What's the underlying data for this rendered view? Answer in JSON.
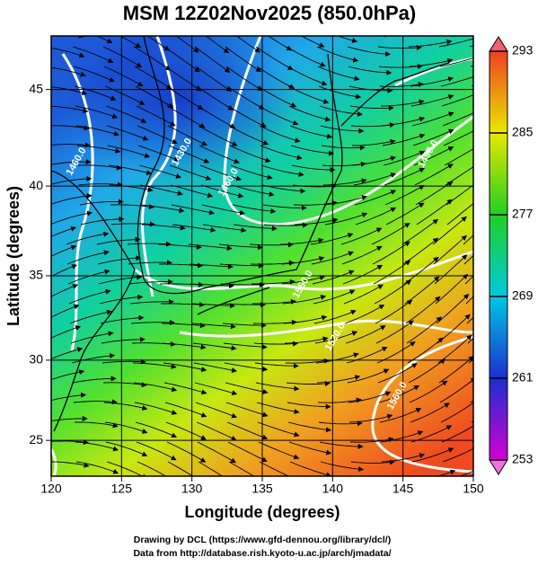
{
  "title": "MSM 12Z02Nov2025 (850.0hPa)",
  "map": {
    "projection": "mercator",
    "lonlim": [
      120,
      150
    ],
    "latlim": [
      22.7,
      47.6
    ],
    "lon_ticks": [
      120,
      125,
      130,
      135,
      140,
      145,
      150
    ],
    "lat_ticks": [
      25,
      30,
      35,
      40,
      45
    ],
    "x_label": "Longitude (degrees)",
    "y_label": "Latitude  (degrees)",
    "contour_labels": [
      {
        "text": "1430.0",
        "lon": 129.3,
        "lat": 41.8
      },
      {
        "text": "1460.0",
        "lon": 132.6,
        "lat": 40.2
      },
      {
        "text": "1460.0",
        "lon": 121.8,
        "lat": 41.3
      },
      {
        "text": "1490.0",
        "lon": 146.8,
        "lat": 41.7
      },
      {
        "text": "1520.0",
        "lon": 140.2,
        "lat": 31.4
      },
      {
        "text": "1550.0",
        "lon": 137.9,
        "lat": 34.5
      },
      {
        "text": "1560.0",
        "lon": 144.6,
        "lat": 27.8
      }
    ]
  },
  "colorbar": {
    "range": [
      253,
      293
    ],
    "ticks": [
      253,
      261,
      269,
      277,
      285,
      293
    ]
  },
  "credits": [
    "Drawing by DCL (https://www.gfd-dennou.org/library/dcl/)",
    "Data from http://database.rish.kyoto-u.ac.jp/arch/jmadata/"
  ]
}
